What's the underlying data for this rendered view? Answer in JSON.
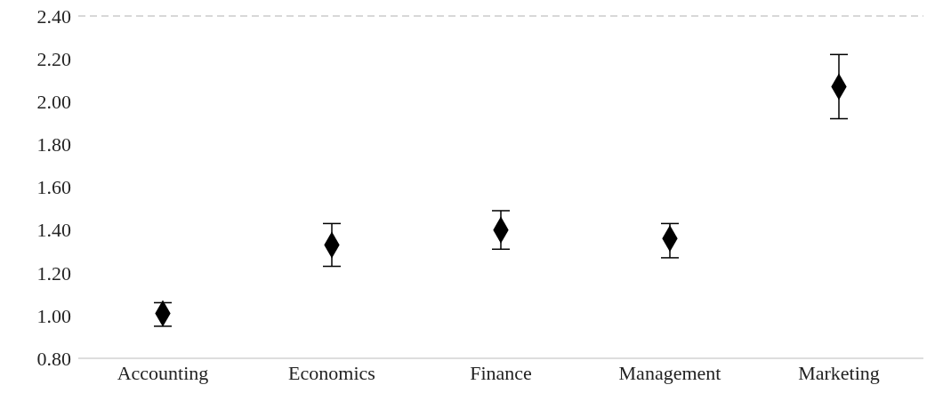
{
  "chart_data": {
    "type": "scatter",
    "categories": [
      "Accounting",
      "Economics",
      "Finance",
      "Management",
      "Marketing"
    ],
    "series": [
      {
        "color": "#000000",
        "values": [
          1.01,
          1.33,
          1.4,
          1.36,
          2.07
        ],
        "errors": [
          [
            0.95,
            1.06
          ],
          [
            1.23,
            1.43
          ],
          [
            1.31,
            1.49
          ],
          [
            1.27,
            1.43
          ],
          [
            1.92,
            2.22
          ]
        ]
      }
    ],
    "marker": "diamond",
    "ylim": [
      0.8,
      2.4
    ],
    "yticks": [
      {
        "value": 0.8,
        "label": "0.80"
      },
      {
        "value": 1.0,
        "label": "1.00"
      },
      {
        "value": 1.2,
        "label": "1.20"
      },
      {
        "value": 1.4,
        "label": "1.40"
      },
      {
        "value": 1.6,
        "label": "1.60"
      },
      {
        "value": 1.8,
        "label": "1.80"
      },
      {
        "value": 2.0,
        "label": "2.00"
      },
      {
        "value": 2.2,
        "label": "2.20"
      },
      {
        "value": 2.4,
        "label": "2.40"
      }
    ],
    "ref_lines": [
      {
        "axis": "y",
        "value": 2.4,
        "color": "#cccccc",
        "line_style": "dashed"
      }
    ],
    "grid": false
  }
}
